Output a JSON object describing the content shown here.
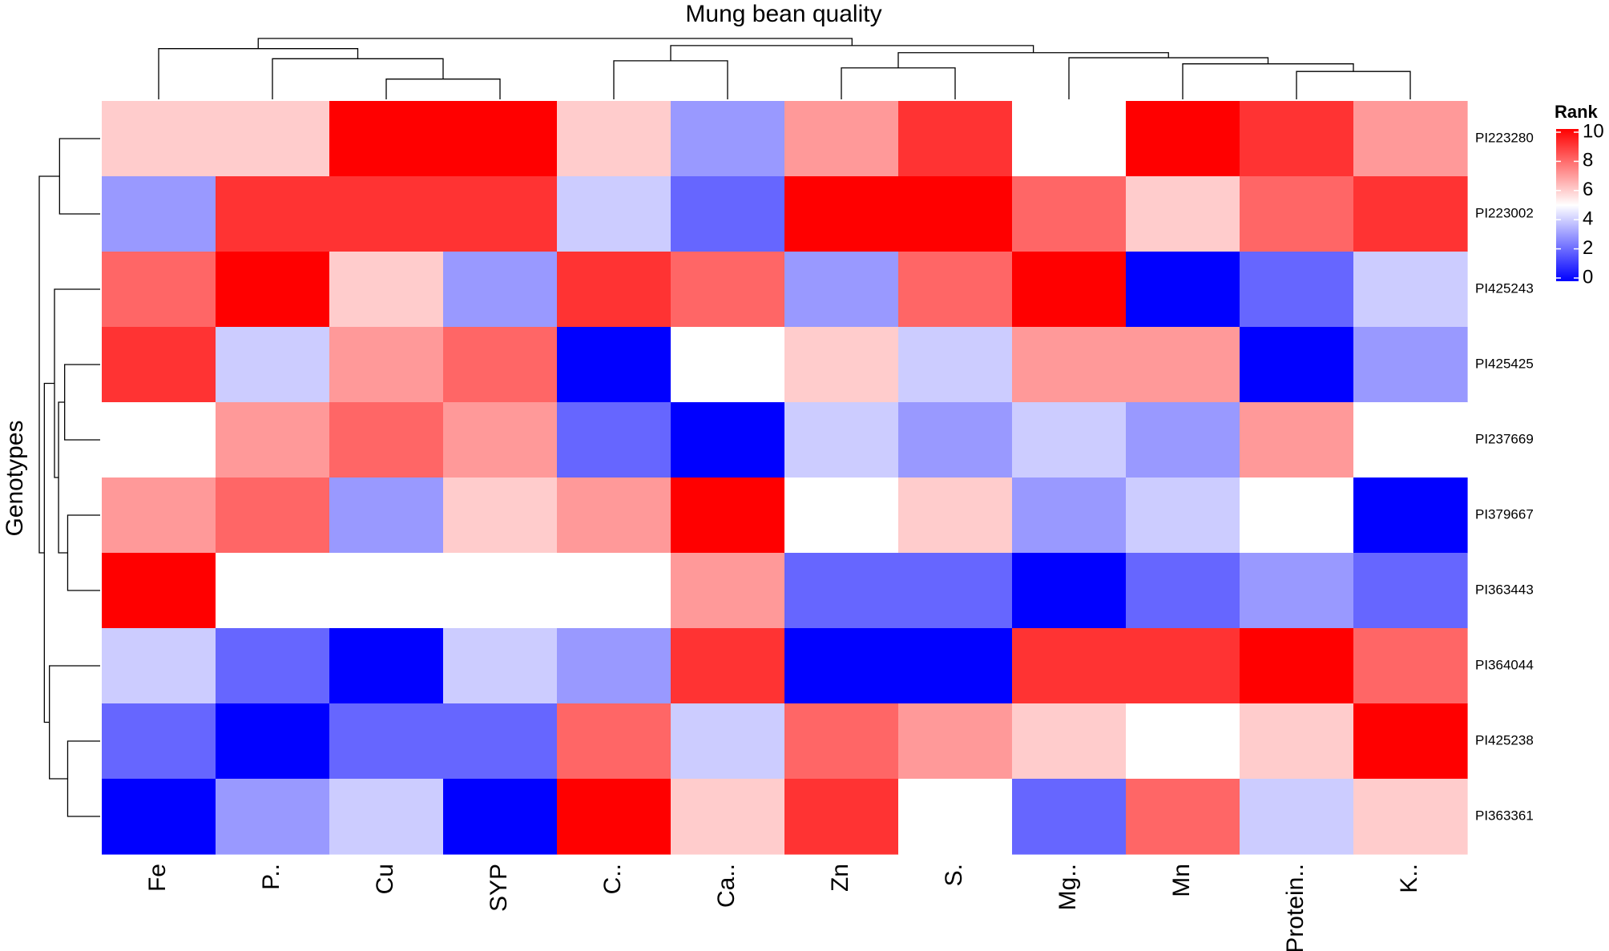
{
  "chart_data": {
    "type": "heatmap",
    "title": "Mung bean quality",
    "ylabel": "Genotypes",
    "columns": [
      "Fe",
      "P..",
      "Cu",
      "SYP",
      "C..",
      "Ca..",
      "Zn",
      "S.",
      "Mg..",
      "Mn",
      "Protein..",
      "K.."
    ],
    "rows": [
      "PI223280",
      "PI223002",
      "PI425243",
      "PI425425",
      "PI237669",
      "PI379667",
      "PI363443",
      "PI364044",
      "PI425238",
      "PI363361"
    ],
    "values": [
      [
        6,
        6,
        10,
        10,
        6,
        3,
        7,
        9,
        5,
        10,
        9,
        7
      ],
      [
        3,
        9,
        9,
        9,
        4,
        2,
        10,
        10,
        8,
        6,
        8,
        9
      ],
      [
        8,
        10,
        6,
        3,
        9,
        8,
        3,
        8,
        10,
        0,
        2,
        4
      ],
      [
        9,
        4,
        7,
        8,
        0,
        5,
        6,
        4,
        7,
        7,
        0,
        3
      ],
      [
        5,
        7,
        8,
        7,
        2,
        0,
        4,
        3,
        4,
        3,
        7,
        5
      ],
      [
        7,
        8,
        3,
        6,
        7,
        10,
        5,
        6,
        3,
        4,
        5,
        0
      ],
      [
        10,
        5,
        5,
        5,
        5,
        7,
        2,
        2,
        0,
        2,
        3,
        2
      ],
      [
        4,
        2,
        0,
        4,
        3,
        9,
        0,
        0,
        9,
        9,
        10,
        8
      ],
      [
        2,
        0,
        2,
        2,
        8,
        4,
        8,
        7,
        6,
        5,
        6,
        10
      ],
      [
        0,
        3,
        4,
        0,
        10,
        6,
        9,
        5,
        2,
        8,
        4,
        6
      ]
    ],
    "legend": {
      "title": "Rank",
      "ticks": [
        "10",
        "8",
        "6",
        "4",
        "2",
        "0"
      ],
      "range": [
        0,
        10
      ],
      "colors": [
        "#0000ff",
        "#ffffff",
        "#ff0000"
      ],
      "position": "top-right"
    },
    "dendrograms": {
      "columns": "top",
      "rows": "left"
    }
  }
}
